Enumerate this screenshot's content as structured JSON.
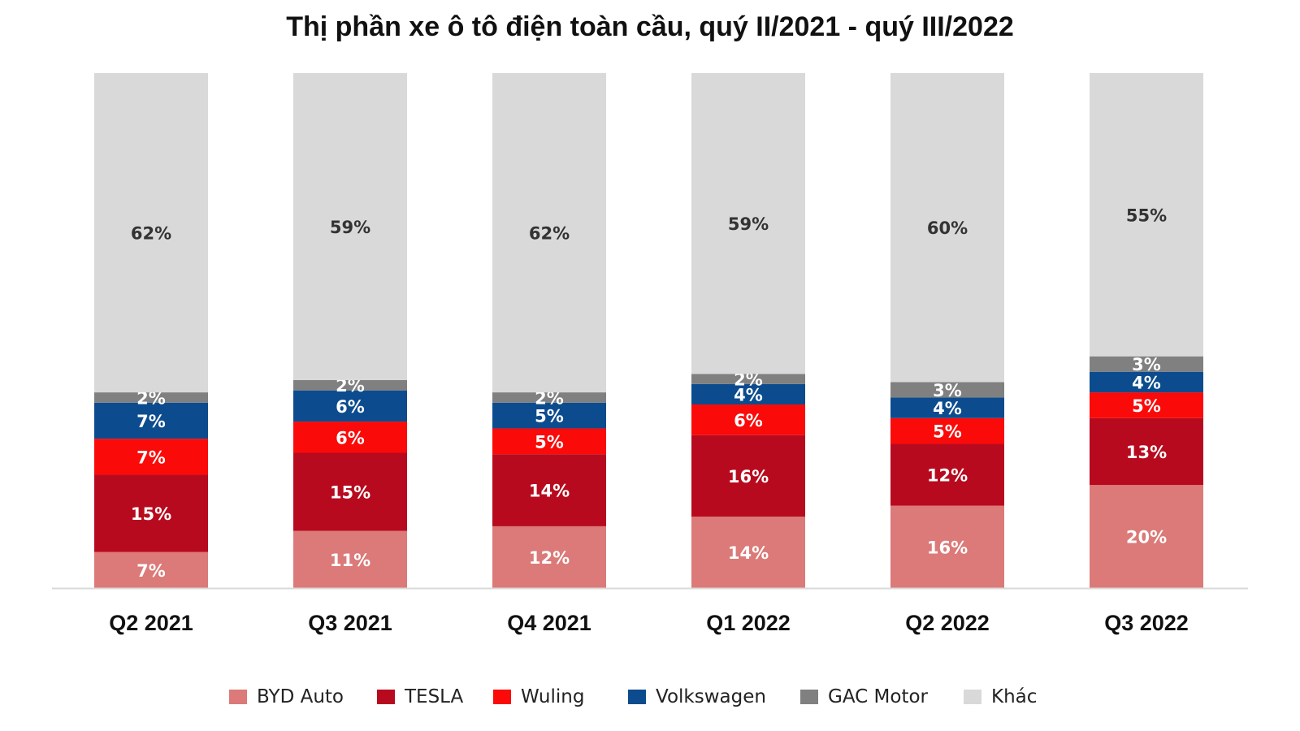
{
  "chart_data": {
    "type": "bar",
    "stacked": true,
    "title": "Thị phần xe ô tô điện toàn cầu, quý II/2021 - quý III/2022",
    "xlabel": "",
    "ylabel": "",
    "ylim": [
      0,
      100
    ],
    "grid": false,
    "legend_position": "bottom",
    "categories": [
      "Q2 2021",
      "Q3 2021",
      "Q4 2021",
      "Q1 2022",
      "Q2 2022",
      "Q3 2022"
    ],
    "series": [
      {
        "name": "BYD Auto",
        "color": "#db7a78",
        "label_color": "#ffffff",
        "values": [
          7,
          11,
          12,
          14,
          16,
          20
        ]
      },
      {
        "name": "TESLA",
        "color": "#b80a1e",
        "label_color": "#ffffff",
        "values": [
          15,
          15,
          14,
          16,
          12,
          13
        ]
      },
      {
        "name": "Wuling",
        "color": "#fb0a0a",
        "label_color": "#ffffff",
        "values": [
          7,
          6,
          5,
          6,
          5,
          5
        ]
      },
      {
        "name": "Volkswagen",
        "color": "#0c4c8e",
        "label_color": "#ffffff",
        "values": [
          7,
          6,
          5,
          4,
          4,
          4
        ]
      },
      {
        "name": "GAC Motor",
        "color": "#808080",
        "label_color": "#ffffff",
        "values": [
          2,
          2,
          2,
          2,
          3,
          3
        ]
      },
      {
        "name": "Khác",
        "color": "#d9d9d9",
        "label_color": "#333333",
        "values": [
          62,
          59,
          62,
          59,
          60,
          55
        ]
      }
    ]
  }
}
